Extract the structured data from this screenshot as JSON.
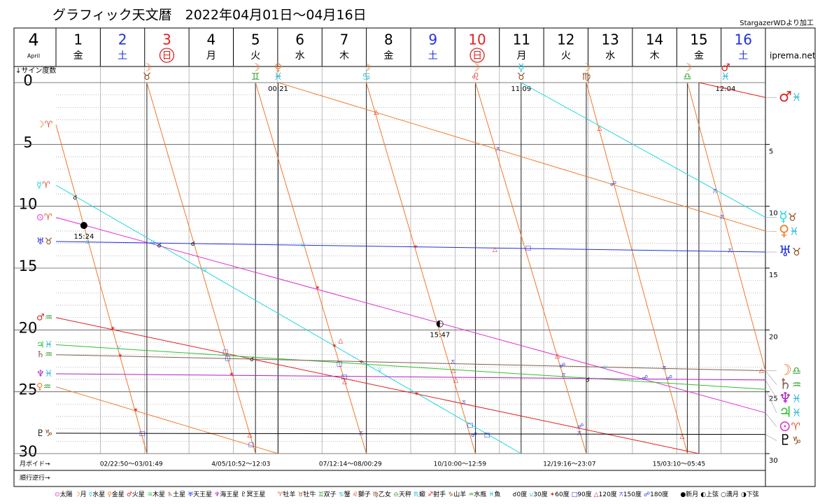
{
  "header": {
    "title": "グラフィック天文暦　2022年04月01日〜04月16日",
    "credit": "StargazerWDより加工",
    "site": "iprema.net",
    "month": "4",
    "month_name": "April",
    "axis_label": "↓サイン度数",
    "void_label": "月ボイド→",
    "retro_label": "順行逆行→"
  },
  "days": [
    {
      "day": "1",
      "weekday": "金",
      "color": "#000000",
      "circled": false
    },
    {
      "day": "2",
      "weekday": "土",
      "color": "#2030e0",
      "circled": false
    },
    {
      "day": "3",
      "weekday": "日",
      "color": "#e02020",
      "circled": true
    },
    {
      "day": "4",
      "weekday": "月",
      "color": "#000000",
      "circled": false
    },
    {
      "day": "5",
      "weekday": "火",
      "color": "#000000",
      "circled": false
    },
    {
      "day": "6",
      "weekday": "水",
      "color": "#000000",
      "circled": false
    },
    {
      "day": "7",
      "weekday": "木",
      "color": "#000000",
      "circled": false
    },
    {
      "day": "8",
      "weekday": "金",
      "color": "#000000",
      "circled": false
    },
    {
      "day": "9",
      "weekday": "土",
      "color": "#2030e0",
      "circled": false
    },
    {
      "day": "10",
      "weekday": "日",
      "color": "#e02020",
      "circled": true
    },
    {
      "day": "11",
      "weekday": "月",
      "color": "#000000",
      "circled": false
    },
    {
      "day": "12",
      "weekday": "火",
      "color": "#000000",
      "circled": false
    },
    {
      "day": "13",
      "weekday": "水",
      "color": "#000000",
      "circled": false
    },
    {
      "day": "14",
      "weekday": "木",
      "color": "#000000",
      "circled": false
    },
    {
      "day": "15",
      "weekday": "金",
      "color": "#000000",
      "circled": false
    },
    {
      "day": "16",
      "weekday": "土",
      "color": "#2030e0",
      "circled": false
    }
  ],
  "voids": [
    "02/22:50〜03/01:49",
    "4/05/10:52〜12:03",
    "07/12:14〜08/00:29",
    "10/10:00〜12:59",
    "12/19:16〜23:07",
    "15/03:10〜05:45"
  ],
  "sign_colors": {
    "♈": "#e0502a",
    "♉": "#8b4513",
    "♊": "#2a9d2a",
    "♋": "#1cb5d0",
    "♌": "#e02020",
    "♍": "#8b4513",
    "♎": "#2a9d2a",
    "♏": "#1cb5d0",
    "♐": "#e02020",
    "♑": "#8b4513",
    "♒": "#2a9d2a",
    "♓": "#1cb5d0"
  },
  "legend": {
    "planets": [
      {
        "symbol": "⊙",
        "label": "太陽",
        "color": "#e030d0"
      },
      {
        "symbol": "☽",
        "label": "月",
        "color": "#f07828"
      },
      {
        "symbol": "☿",
        "label": "水星",
        "color": "#20c8e0"
      },
      {
        "symbol": "♀",
        "label": "金星",
        "color": "#f08030"
      },
      {
        "symbol": "♂",
        "label": "火星",
        "color": "#e02020"
      },
      {
        "symbol": "♃",
        "label": "木星",
        "color": "#30c030"
      },
      {
        "symbol": "♄",
        "label": "土星",
        "color": "#804020"
      },
      {
        "symbol": "♅",
        "label": "天王星",
        "color": "#2030e0"
      },
      {
        "symbol": "♆",
        "label": "海王星",
        "color": "#b020c0"
      },
      {
        "symbol": "♇",
        "label": "冥王星",
        "color": "#000000"
      }
    ],
    "signs": [
      {
        "symbol": "♈",
        "label": "牡羊"
      },
      {
        "symbol": "♉",
        "label": "牡牛"
      },
      {
        "symbol": "♊",
        "label": "双子"
      },
      {
        "symbol": "♋",
        "label": "蟹"
      },
      {
        "symbol": "♌",
        "label": "獅子"
      },
      {
        "symbol": "♍",
        "label": "乙女"
      },
      {
        "symbol": "♎",
        "label": "天秤"
      },
      {
        "symbol": "♏",
        "label": "蠍"
      },
      {
        "symbol": "♐",
        "label": "射手"
      },
      {
        "symbol": "♑",
        "label": "山羊"
      },
      {
        "symbol": "♒",
        "label": "水瓶"
      },
      {
        "symbol": "♓",
        "label": "魚"
      }
    ],
    "aspects": [
      {
        "symbol": "☌",
        "label": "0度",
        "color": "#000000"
      },
      {
        "symbol": "⚺",
        "label": "30度",
        "color": "#20c8e0"
      },
      {
        "symbol": "✶",
        "label": "60度",
        "color": "#e02020"
      },
      {
        "symbol": "□",
        "label": "90度",
        "color": "#2030e0"
      },
      {
        "symbol": "△",
        "label": "120度",
        "color": "#e02020"
      },
      {
        "symbol": "⚻",
        "label": "150度",
        "color": "#2030e0"
      },
      {
        "symbol": "☍",
        "label": "180度",
        "color": "#2030e0"
      }
    ],
    "phases": [
      {
        "symbol": "●",
        "label": "新月"
      },
      {
        "symbol": "◐",
        "label": "上弦"
      },
      {
        "symbol": "○",
        "label": "満月"
      },
      {
        "symbol": "◑",
        "label": "下弦"
      }
    ]
  },
  "chart_data": {
    "type": "line",
    "xlim": [
      0,
      16
    ],
    "ylim": [
      0,
      30
    ],
    "yticks": [
      0,
      5,
      10,
      15,
      20,
      25,
      30
    ],
    "y2lim": [
      0,
      30
    ],
    "y2ticks": [
      5,
      10,
      15,
      20,
      25,
      30
    ],
    "grid": true,
    "series": [
      {
        "name": "☽",
        "sign_start": "♈",
        "sign_end": "♎",
        "color": "#f07828",
        "x": [
          0,
          2.05,
          2.05,
          2.05,
          4.5,
          4.5,
          4.5,
          7.0,
          7.0,
          7.0,
          9.46,
          9.46,
          9.46,
          11.96,
          11.96,
          11.96,
          14.24,
          14.24,
          14.24,
          16
        ],
        "values": [
          3.4,
          30,
          null,
          0,
          30,
          null,
          0,
          30,
          null,
          0,
          30,
          null,
          0,
          30,
          null,
          0,
          30,
          null,
          0,
          23.3
        ]
      },
      {
        "name": "☿",
        "sign_start": "♈",
        "sign_end": "♉",
        "color": "#20d8e0",
        "x": [
          0,
          10.49,
          10.49,
          10.49,
          16
        ],
        "values": [
          8.3,
          30,
          null,
          0,
          10.9
        ]
      },
      {
        "name": "⊙",
        "sign_start": "♈",
        "sign_end": "♈",
        "color": "#e030d0",
        "x": [
          0,
          16
        ],
        "values": [
          10.9,
          26.7
        ]
      },
      {
        "name": "♅",
        "sign_start": "♉",
        "sign_end": "♉",
        "color": "#2030e0",
        "x": [
          0,
          16
        ],
        "values": [
          12.85,
          13.7
        ]
      },
      {
        "name": "♂",
        "sign_start": "♒",
        "sign_end": "♓",
        "color": "#e02020",
        "x": [
          0,
          14.5,
          14.5,
          14.5,
          16
        ],
        "values": [
          19.0,
          30,
          null,
          0,
          1.2
        ]
      },
      {
        "name": "♃",
        "sign_start": "♓",
        "sign_end": "♓",
        "color": "#30c030",
        "x": [
          0,
          16
        ],
        "values": [
          21.2,
          24.8
        ]
      },
      {
        "name": "♄",
        "sign_start": "♒",
        "sign_end": "♒",
        "color": "#806050",
        "x": [
          0,
          16
        ],
        "values": [
          22.0,
          23.3
        ]
      },
      {
        "name": "♆",
        "sign_start": "♓",
        "sign_end": "♓",
        "color": "#b020c0",
        "x": [
          0,
          16
        ],
        "values": [
          23.55,
          24.05
        ]
      },
      {
        "name": "♀",
        "sign_start": "♒",
        "sign_end": "♓",
        "color": "#f08030",
        "x": [
          0,
          5.01,
          5.01,
          5.01,
          16
        ],
        "values": [
          24.6,
          30,
          null,
          0,
          12.0
        ]
      },
      {
        "name": "♇",
        "sign_start": "♑",
        "sign_end": "♑",
        "color": "#000000",
        "x": [
          0,
          16
        ],
        "values": [
          28.35,
          28.45
        ]
      }
    ],
    "events": [
      {
        "x": 2.05,
        "planet": "☽",
        "sign": "♉",
        "color": "#f07828"
      },
      {
        "x": 4.5,
        "planet": "☽",
        "sign": "♊",
        "color": "#f07828"
      },
      {
        "x": 5.01,
        "planet": "♀",
        "sign": "♓",
        "color": "#f08030",
        "time": "00:21"
      },
      {
        "x": 7.0,
        "planet": "☽",
        "sign": "♋",
        "color": "#f07828"
      },
      {
        "x": 9.46,
        "planet": "☽",
        "sign": "♌",
        "color": "#f07828"
      },
      {
        "x": 10.49,
        "planet": "☿",
        "sign": "♉",
        "color": "#20c8e0",
        "time": "11:09"
      },
      {
        "x": 11.96,
        "planet": "☽",
        "sign": "♍",
        "color": "#f07828"
      },
      {
        "x": 14.24,
        "planet": "☽",
        "sign": "♎",
        "color": "#f07828"
      },
      {
        "x": 14.5,
        "planet": "♂",
        "sign": "♓",
        "color": "#e02020",
        "time": "12:04"
      }
    ],
    "moon_phases": [
      {
        "x": 0.63,
        "y": 11.55,
        "symbol": "●",
        "time": "15:24"
      },
      {
        "x": 8.66,
        "y": 19.5,
        "symbol": "◐",
        "time": "15:47"
      }
    ],
    "aspect_marks": [
      {
        "x": 0.43,
        "y": 9.3,
        "symbol": "☌",
        "color": "#000000"
      },
      {
        "x": 2.33,
        "y": 13.2,
        "symbol": "☌",
        "color": "#000000"
      },
      {
        "x": 3.09,
        "y": 13.05,
        "symbol": "☌",
        "color": "#000000"
      },
      {
        "x": 4.42,
        "y": 22.4,
        "symbol": "☌",
        "color": "#000000"
      },
      {
        "x": 11.99,
        "y": 24.05,
        "symbol": "☌",
        "color": "#000000"
      },
      {
        "x": 0.71,
        "y": 12.85,
        "symbol": "⚺",
        "color": "#20c8e0"
      },
      {
        "x": 2.18,
        "y": 12.9,
        "symbol": "⚺",
        "color": "#20c8e0"
      },
      {
        "x": 5.57,
        "y": 13.1,
        "symbol": "⚺",
        "color": "#20c8e0"
      },
      {
        "x": 3.36,
        "y": 15.1,
        "symbol": "⚺",
        "color": "#20c8e0"
      },
      {
        "x": 1.42,
        "y": 21.4,
        "symbol": "⚺",
        "color": "#20c8e0"
      },
      {
        "x": 7.3,
        "y": 23.2,
        "symbol": "⚺",
        "color": "#20c8e0"
      },
      {
        "x": 12.39,
        "y": 23.0,
        "symbol": "⚺",
        "color": "#20c8e0"
      },
      {
        "x": 1.28,
        "y": 19.9,
        "symbol": "✶",
        "color": "#e02020"
      },
      {
        "x": 1.45,
        "y": 22.1,
        "symbol": "✶",
        "color": "#e02020"
      },
      {
        "x": 1.8,
        "y": 26.5,
        "symbol": "✶",
        "color": "#e02020"
      },
      {
        "x": 3.96,
        "y": 23.6,
        "symbol": "✶",
        "color": "#e02020"
      },
      {
        "x": 5.9,
        "y": 16.6,
        "symbol": "✶",
        "color": "#e02020"
      },
      {
        "x": 6.28,
        "y": 21.3,
        "symbol": "✶",
        "color": "#e02020"
      },
      {
        "x": 6.89,
        "y": 22.6,
        "symbol": "✶",
        "color": "#e02020"
      },
      {
        "x": 8.14,
        "y": 25.2,
        "symbol": "✶",
        "color": "#e02020"
      },
      {
        "x": 8.11,
        "y": 13.3,
        "symbol": "✶",
        "color": "#e02020"
      },
      {
        "x": 3.82,
        "y": 21.8,
        "symbol": "□",
        "color": "#2030e0"
      },
      {
        "x": 3.87,
        "y": 22.3,
        "symbol": "□",
        "color": "#2030e0"
      },
      {
        "x": 4.4,
        "y": 29.3,
        "symbol": "□",
        "color": "#2030e0"
      },
      {
        "x": 1.94,
        "y": 28.4,
        "symbol": "□",
        "color": "#2030e0"
      },
      {
        "x": 6.39,
        "y": 22.75,
        "symbol": "□",
        "color": "#2030e0"
      },
      {
        "x": 6.5,
        "y": 23.8,
        "symbol": "□",
        "color": "#2030e0"
      },
      {
        "x": 9.34,
        "y": 27.7,
        "symbol": "□",
        "color": "#2030e0"
      },
      {
        "x": 9.72,
        "y": 28.5,
        "symbol": "□",
        "color": "#2030e0"
      },
      {
        "x": 10.65,
        "y": 13.4,
        "symbol": "□",
        "color": "#2030e0"
      },
      {
        "x": 7.22,
        "y": 2.4,
        "symbol": "△",
        "color": "#e02020"
      },
      {
        "x": 12.26,
        "y": 3.7,
        "symbol": "△",
        "color": "#e02020"
      },
      {
        "x": 9.9,
        "y": 13.5,
        "symbol": "△",
        "color": "#e02020"
      },
      {
        "x": 4.37,
        "y": 28.5,
        "symbol": "△",
        "color": "#e02020"
      },
      {
        "x": 11.31,
        "y": 22.1,
        "symbol": "△",
        "color": "#e02020"
      },
      {
        "x": 6.42,
        "y": 20.9,
        "symbol": "△",
        "color": "#e02020"
      },
      {
        "x": 6.51,
        "y": 24.2,
        "symbol": "△",
        "color": "#e02020"
      },
      {
        "x": 9.02,
        "y": 24.05,
        "symbol": "△",
        "color": "#e02020"
      },
      {
        "x": 14.12,
        "y": 28.6,
        "symbol": "△",
        "color": "#e02020"
      },
      {
        "x": 15.91,
        "y": 23.3,
        "symbol": "△",
        "color": "#e02020"
      },
      {
        "x": 8.96,
        "y": 23.3,
        "symbol": "△",
        "color": "#e02020"
      },
      {
        "x": 9.97,
        "y": 5.4,
        "symbol": "⚻",
        "color": "#2030e0"
      },
      {
        "x": 9.2,
        "y": 25.9,
        "symbol": "⚻",
        "color": "#2030e0"
      },
      {
        "x": 15.02,
        "y": 10.9,
        "symbol": "⚻",
        "color": "#2030e0"
      },
      {
        "x": 14.86,
        "y": 8.8,
        "symbol": "⚻",
        "color": "#2030e0"
      },
      {
        "x": 13.72,
        "y": 23.1,
        "symbol": "⚻",
        "color": "#2030e0"
      },
      {
        "x": 15.2,
        "y": 13.6,
        "symbol": "⚻",
        "color": "#2030e0"
      },
      {
        "x": 6.88,
        "y": 28.4,
        "symbol": "⚻",
        "color": "#2030e0"
      },
      {
        "x": 11.8,
        "y": 28.4,
        "symbol": "⚻",
        "color": "#2030e0"
      },
      {
        "x": 11.45,
        "y": 23.7,
        "symbol": "⚻",
        "color": "#2030e0"
      },
      {
        "x": 8.95,
        "y": 22.6,
        "symbol": "⚻",
        "color": "#2030e0"
      },
      {
        "x": 12.57,
        "y": 8.2,
        "symbol": "☍",
        "color": "#2030e0"
      },
      {
        "x": 11.83,
        "y": 27.8,
        "symbol": "☍",
        "color": "#2030e0"
      },
      {
        "x": 13.28,
        "y": 23.9,
        "symbol": "☍",
        "color": "#2030e0"
      },
      {
        "x": 13.83,
        "y": 23.9,
        "symbol": "☍",
        "color": "#2030e0"
      },
      {
        "x": 9.43,
        "y": 28.5,
        "symbol": "☍",
        "color": "#2030e0"
      },
      {
        "x": 11.42,
        "y": 22.9,
        "symbol": "☍",
        "color": "#2030e0"
      }
    ]
  }
}
